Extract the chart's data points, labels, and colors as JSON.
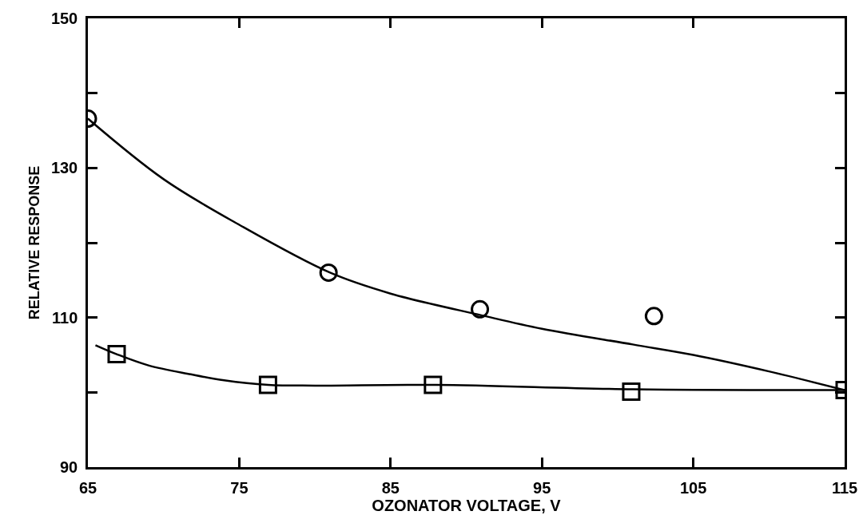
{
  "chart_data": {
    "type": "scatter",
    "xlabel": "OZONATOR VOLTAGE, V",
    "ylabel": "RELATIVE RESPONSE",
    "xlim": [
      65,
      115
    ],
    "xticks": [
      65,
      75,
      85,
      95,
      105,
      115
    ],
    "ylim": [
      90,
      150
    ],
    "yticks": [
      90,
      {
        "value": 100,
        "label": null
      },
      110,
      {
        "value": 120,
        "label": null
      },
      130,
      {
        "value": 140,
        "label": null
      },
      150
    ],
    "series": [
      {
        "marker": "circle",
        "color": "#000000",
        "x": [
          65,
          80.9,
          90.9,
          102.4
        ],
        "values": [
          136.6,
          116,
          111.1,
          110.2
        ]
      },
      {
        "marker": "square",
        "color": "#000000",
        "x": [
          66.9,
          76.9,
          87.8,
          100.9,
          115
        ],
        "values": [
          105.1,
          101,
          101,
          100.1,
          100.3
        ]
      },
      {
        "type": "line",
        "marker": "none",
        "color": "#000000",
        "x": [
          65,
          70,
          75,
          81,
          85,
          91,
          95,
          101,
          105,
          110,
          115
        ],
        "values": [
          136.6,
          128.5,
          122.4,
          116,
          113.2,
          110.3,
          108.5,
          106.4,
          105,
          102.8,
          100.3
        ]
      },
      {
        "type": "line",
        "marker": "none",
        "color": "#000000",
        "x": [
          65.5,
          66.9,
          69,
          71.8,
          74,
          76.9,
          80,
          88,
          101,
          115
        ],
        "values": [
          106.3,
          105.1,
          103.6,
          102.4,
          101.6,
          101,
          100.9,
          101,
          100.4,
          100.3
        ]
      }
    ]
  }
}
